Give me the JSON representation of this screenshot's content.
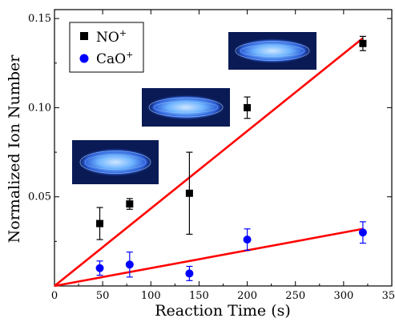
{
  "chart_data": {
    "type": "scatter",
    "xlabel": "Reaction Time (s)",
    "ylabel": "Normalized Ion Number",
    "xlim": [
      0,
      350
    ],
    "ylim": [
      0,
      0.155
    ],
    "x_ticks": [
      "0",
      "50",
      "100",
      "150",
      "200",
      "250",
      "300",
      "350"
    ],
    "y_ticks": [
      "0.05",
      "0.10",
      "0.15"
    ],
    "y_tick_values": [
      0.05,
      0.1,
      0.15
    ],
    "legend_position": "top-left",
    "series": [
      {
        "name": "NO⁺",
        "name_base": "NO",
        "name_sup": "+",
        "marker": "square",
        "color": "#000000",
        "x": [
          47,
          78,
          140,
          200,
          320
        ],
        "y": [
          0.035,
          0.046,
          0.052,
          0.1,
          0.136
        ],
        "err": [
          0.009,
          0.003,
          0.023,
          0.006,
          0.004
        ],
        "fit": {
          "color": "#ff0000",
          "x": [
            0,
            320
          ],
          "y": [
            0,
            0.139
          ]
        }
      },
      {
        "name": "CaO⁺",
        "name_base": "CaO",
        "name_sup": "+",
        "marker": "circle",
        "color": "#0000ff",
        "x": [
          47,
          78,
          140,
          200,
          320
        ],
        "y": [
          0.01,
          0.012,
          0.007,
          0.026,
          0.03
        ],
        "err": [
          0.004,
          0.007,
          0.004,
          0.006,
          0.006
        ],
        "fit": {
          "color": "#ff0000",
          "x": [
            0,
            320
          ],
          "y": [
            0,
            0.032
          ]
        }
      }
    ],
    "insets": {
      "description_icon": "ion-crystal-image",
      "colors": {
        "background": "#0a1a55",
        "glow": "#6fb4ff"
      }
    }
  }
}
